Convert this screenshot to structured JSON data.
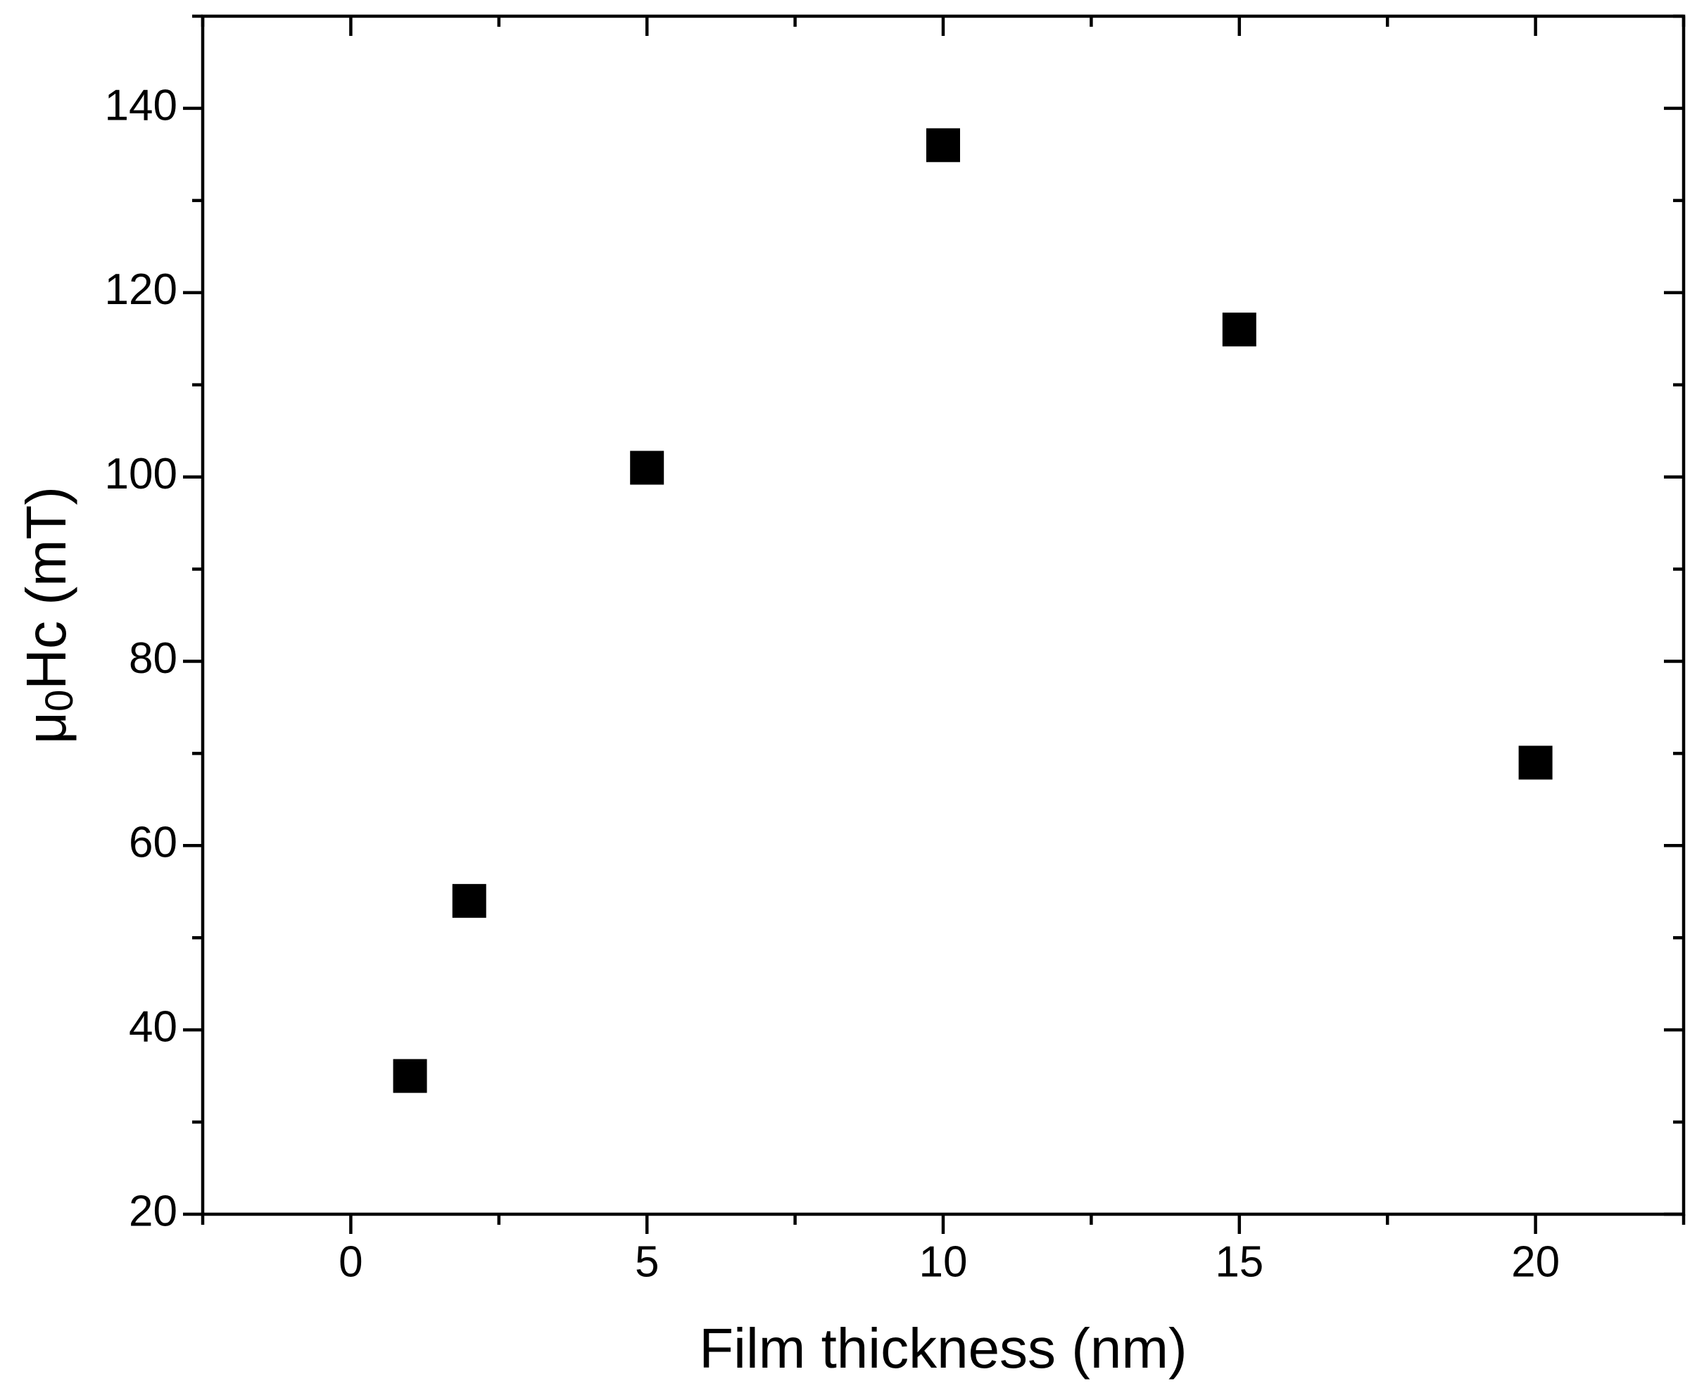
{
  "chart_data": {
    "type": "scatter",
    "xlabel": "Film thickness (nm)",
    "ylabel": [
      "μ",
      "0",
      "Hc (mT)"
    ],
    "series": [
      {
        "x": [
          1,
          2,
          5,
          10,
          15,
          20
        ],
        "values": [
          35,
          54,
          101,
          136,
          116,
          69
        ],
        "color": "#000000",
        "marker": "square"
      }
    ],
    "xlim": [
      -2.5,
      22.5
    ],
    "xticks": [
      0,
      5,
      10,
      15,
      20
    ],
    "xminorticks": [
      -2.5,
      2.5,
      7.5,
      12.5,
      17.5,
      22.5
    ],
    "ylim": [
      20,
      150
    ],
    "yticks": [
      20,
      40,
      60,
      80,
      100,
      120,
      140
    ],
    "yminorticks": [
      30,
      50,
      70,
      90,
      110,
      130,
      150
    ],
    "grid": false
  }
}
